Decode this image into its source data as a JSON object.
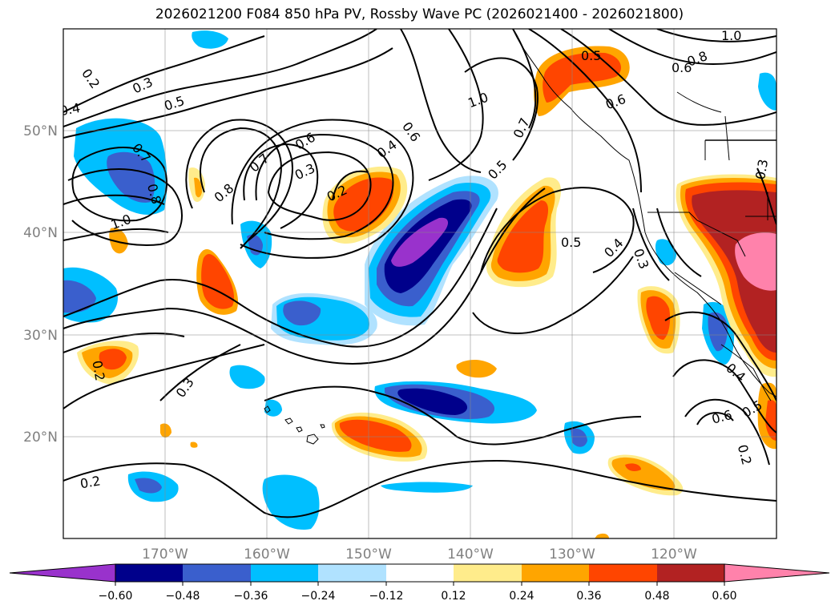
{
  "title": "2026021200 F084 850 hPa PV, Rossby Wave PC (2026021400 - 2026021800)",
  "map": {
    "lat_labels": [
      "50°N",
      "40°N",
      "30°N",
      "20°N"
    ],
    "lon_labels": [
      "170°W",
      "160°W",
      "150°W",
      "140°W",
      "130°W",
      "120°W"
    ],
    "contour_labels": [
      "0.2",
      "0.3",
      "0.4",
      "0.5",
      "0.6",
      "0.7",
      "0.8",
      "1.0",
      "0.5",
      "0.6",
      "0.7",
      "0.8",
      "1.0",
      "0.7",
      "0.8",
      "1.0",
      "0.6",
      "0.7",
      "0.8",
      "0.3",
      "0.2",
      "0.4",
      "0.6",
      "0.5",
      "0.5",
      "0.4",
      "0.3",
      "0.4",
      "0.5",
      "0.6",
      "0.3",
      "0.2",
      "0.3",
      "0.2",
      "0.2",
      "0.3",
      "1.0",
      "0.6",
      "0.5",
      "0.8"
    ]
  },
  "colorbar": {
    "ticks": [
      "−0.60",
      "−0.48",
      "−0.36",
      "−0.24",
      "−0.12",
      "0.12",
      "0.24",
      "0.36",
      "0.48",
      "0.60"
    ],
    "colors": [
      "#9932cc",
      "#00008b",
      "#3a5fcd",
      "#00bfff",
      "#b0e2ff",
      "#ffffff",
      "#ffec8b",
      "#ffa500",
      "#ff4500",
      "#b22222",
      "#ff82ab"
    ]
  }
}
